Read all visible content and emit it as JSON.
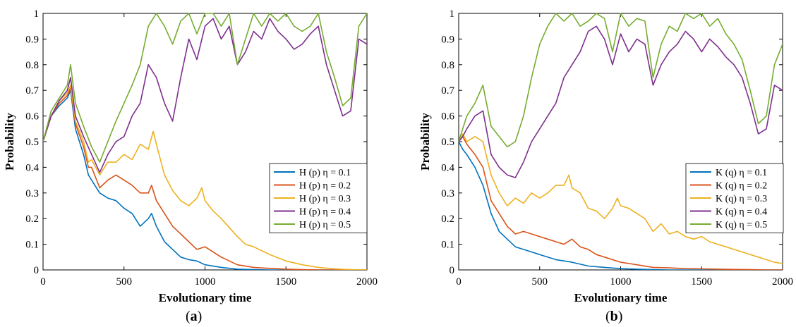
{
  "charts": [
    {
      "panel_label": "(a)",
      "caption_open": "(",
      "caption_letter": "a",
      "caption_close": ")",
      "chart_data": {
        "type": "line",
        "title": "",
        "xlabel": "Evolutionary time",
        "ylabel": "Probability",
        "xlim": [
          0,
          2000
        ],
        "ylim": [
          0,
          1
        ],
        "xticks": [
          0,
          500,
          1000,
          1500,
          2000
        ],
        "yticks": [
          0,
          0.1,
          0.2,
          0.3,
          0.4,
          0.5,
          0.6,
          0.7,
          0.8,
          0.9,
          1
        ],
        "grid": false,
        "legend_position": "middle-right",
        "series": [
          {
            "name": "H (p) η = 0.1",
            "color": "#0072BD",
            "x": [
              0,
              50,
              100,
              150,
              170,
              200,
              250,
              280,
              300,
              350,
              400,
              450,
              500,
              550,
              600,
              650,
              670,
              700,
              750,
              800,
              850,
              900,
              950,
              1000,
              1100,
              1200,
              1300,
              1400,
              1500,
              1600,
              1700,
              1800,
              1900,
              2000
            ],
            "y": [
              0.5,
              0.6,
              0.64,
              0.67,
              0.7,
              0.55,
              0.45,
              0.37,
              0.35,
              0.3,
              0.28,
              0.27,
              0.24,
              0.22,
              0.17,
              0.2,
              0.22,
              0.17,
              0.11,
              0.08,
              0.05,
              0.04,
              0.035,
              0.02,
              0.01,
              0.003,
              0.001,
              0,
              0,
              0,
              0,
              0,
              0,
              0
            ]
          },
          {
            "name": "H (p) η = 0.2",
            "color": "#D95319",
            "x": [
              0,
              50,
              100,
              150,
              170,
              200,
              250,
              280,
              300,
              350,
              400,
              450,
              500,
              550,
              600,
              650,
              670,
              700,
              750,
              800,
              850,
              900,
              950,
              1000,
              1100,
              1200,
              1300,
              1400,
              1500,
              1600,
              1700,
              1800,
              1900,
              2000
            ],
            "y": [
              0.5,
              0.6,
              0.65,
              0.68,
              0.71,
              0.57,
              0.48,
              0.4,
              0.4,
              0.32,
              0.35,
              0.37,
              0.35,
              0.33,
              0.3,
              0.3,
              0.33,
              0.27,
              0.22,
              0.17,
              0.14,
              0.11,
              0.08,
              0.09,
              0.05,
              0.02,
              0.01,
              0.006,
              0.003,
              0.001,
              0,
              0,
              0,
              0
            ]
          },
          {
            "name": "H (p) η = 0.3",
            "color": "#EDB120",
            "x": [
              0,
              50,
              100,
              150,
              170,
              200,
              250,
              280,
              300,
              350,
              400,
              450,
              500,
              550,
              600,
              650,
              680,
              700,
              750,
              800,
              850,
              900,
              950,
              980,
              1000,
              1050,
              1100,
              1200,
              1250,
              1300,
              1400,
              1500,
              1600,
              1700,
              1800,
              1900,
              2000
            ],
            "y": [
              0.5,
              0.6,
              0.66,
              0.69,
              0.72,
              0.58,
              0.5,
              0.42,
              0.43,
              0.37,
              0.42,
              0.42,
              0.45,
              0.43,
              0.49,
              0.47,
              0.54,
              0.49,
              0.37,
              0.31,
              0.27,
              0.25,
              0.28,
              0.32,
              0.27,
              0.23,
              0.2,
              0.13,
              0.1,
              0.09,
              0.06,
              0.035,
              0.02,
              0.01,
              0.004,
              0.001,
              0
            ]
          },
          {
            "name": "H (p) η = 0.4",
            "color": "#7E2F8E",
            "x": [
              0,
              50,
              100,
              150,
              170,
              200,
              250,
              300,
              350,
              400,
              450,
              500,
              550,
              600,
              650,
              700,
              750,
              800,
              850,
              900,
              950,
              1000,
              1050,
              1100,
              1150,
              1200,
              1250,
              1300,
              1350,
              1400,
              1450,
              1500,
              1550,
              1600,
              1650,
              1700,
              1750,
              1800,
              1850,
              1900,
              1950,
              2000
            ],
            "y": [
              0.5,
              0.6,
              0.66,
              0.7,
              0.75,
              0.6,
              0.52,
              0.45,
              0.38,
              0.45,
              0.5,
              0.52,
              0.6,
              0.65,
              0.8,
              0.75,
              0.65,
              0.58,
              0.75,
              0.9,
              0.82,
              0.95,
              0.98,
              0.9,
              0.95,
              0.8,
              0.85,
              0.93,
              0.9,
              0.98,
              0.93,
              0.9,
              0.86,
              0.88,
              0.92,
              0.95,
              0.8,
              0.7,
              0.6,
              0.62,
              0.9,
              0.88
            ]
          },
          {
            "name": "H (p) η = 0.5",
            "color": "#77AC30",
            "x": [
              0,
              50,
              100,
              150,
              170,
              200,
              250,
              300,
              350,
              400,
              450,
              500,
              550,
              600,
              650,
              700,
              750,
              800,
              850,
              900,
              950,
              1000,
              1050,
              1100,
              1150,
              1200,
              1250,
              1300,
              1350,
              1400,
              1450,
              1500,
              1550,
              1600,
              1650,
              1700,
              1750,
              1800,
              1850,
              1900,
              1950,
              2000
            ],
            "y": [
              0.5,
              0.62,
              0.67,
              0.72,
              0.8,
              0.65,
              0.56,
              0.48,
              0.42,
              0.5,
              0.58,
              0.65,
              0.72,
              0.8,
              0.95,
              1,
              0.95,
              0.88,
              0.97,
              1,
              0.92,
              1,
              1,
              0.95,
              1,
              0.8,
              0.9,
              1,
              0.95,
              1,
              0.97,
              1,
              0.95,
              0.93,
              0.95,
              1,
              0.85,
              0.75,
              0.64,
              0.67,
              0.95,
              1
            ]
          }
        ]
      }
    },
    {
      "panel_label": "(b)",
      "caption_open": "(",
      "caption_letter": "b",
      "caption_close": ")",
      "chart_data": {
        "type": "line",
        "title": "",
        "xlabel": "Evolutionary time",
        "ylabel": "Probability",
        "xlim": [
          0,
          2000
        ],
        "ylim": [
          0,
          1
        ],
        "xticks": [
          0,
          500,
          1000,
          1500,
          2000
        ],
        "yticks": [
          0,
          0.1,
          0.2,
          0.3,
          0.4,
          0.5,
          0.6,
          0.7,
          0.8,
          0.9,
          1
        ],
        "grid": false,
        "legend_position": "middle-right",
        "series": [
          {
            "name": "K (q) η = 0.1",
            "color": "#0072BD",
            "x": [
              0,
              25,
              50,
              100,
              150,
              200,
              250,
              300,
              350,
              400,
              450,
              500,
              600,
              700,
              800,
              900,
              1000,
              1100,
              1200,
              1300,
              1400,
              1500,
              1600,
              1700,
              1800,
              1900,
              2000
            ],
            "y": [
              0.5,
              0.47,
              0.45,
              0.4,
              0.33,
              0.22,
              0.15,
              0.12,
              0.09,
              0.08,
              0.07,
              0.06,
              0.04,
              0.03,
              0.015,
              0.01,
              0.005,
              0.003,
              0.001,
              0,
              0,
              0,
              0,
              0,
              0,
              0,
              0
            ]
          },
          {
            "name": "K (q) η = 0.2",
            "color": "#D95319",
            "x": [
              0,
              25,
              50,
              100,
              150,
              200,
              250,
              300,
              350,
              400,
              450,
              500,
              550,
              600,
              650,
              700,
              750,
              800,
              850,
              900,
              1000,
              1100,
              1200,
              1300,
              1400,
              1500,
              1600,
              1700,
              1800,
              1900,
              2000
            ],
            "y": [
              0.5,
              0.52,
              0.49,
              0.45,
              0.4,
              0.27,
              0.22,
              0.17,
              0.14,
              0.15,
              0.14,
              0.13,
              0.12,
              0.11,
              0.1,
              0.12,
              0.09,
              0.08,
              0.06,
              0.05,
              0.03,
              0.02,
              0.01,
              0.008,
              0.005,
              0.004,
              0.003,
              0.002,
              0.001,
              0,
              0
            ]
          },
          {
            "name": "K (q) η = 0.3",
            "color": "#EDB120",
            "x": [
              0,
              25,
              50,
              100,
              150,
              200,
              250,
              300,
              350,
              400,
              450,
              500,
              550,
              600,
              650,
              680,
              700,
              750,
              800,
              850,
              900,
              950,
              980,
              1000,
              1050,
              1100,
              1150,
              1200,
              1250,
              1300,
              1350,
              1400,
              1450,
              1500,
              1550,
              1600,
              1650,
              1700,
              1750,
              1800,
              1850,
              1900,
              1950,
              2000
            ],
            "y": [
              0.5,
              0.53,
              0.5,
              0.52,
              0.5,
              0.37,
              0.3,
              0.25,
              0.28,
              0.26,
              0.3,
              0.28,
              0.3,
              0.33,
              0.33,
              0.37,
              0.32,
              0.3,
              0.24,
              0.23,
              0.2,
              0.24,
              0.28,
              0.25,
              0.24,
              0.22,
              0.2,
              0.15,
              0.18,
              0.14,
              0.15,
              0.13,
              0.12,
              0.13,
              0.11,
              0.1,
              0.09,
              0.08,
              0.07,
              0.06,
              0.05,
              0.04,
              0.03,
              0.025
            ]
          },
          {
            "name": "K (q) η = 0.4",
            "color": "#7E2F8E",
            "x": [
              0,
              25,
              50,
              100,
              150,
              200,
              250,
              300,
              350,
              400,
              450,
              500,
              550,
              600,
              650,
              700,
              750,
              800,
              850,
              900,
              950,
              1000,
              1050,
              1100,
              1150,
              1200,
              1250,
              1300,
              1350,
              1400,
              1450,
              1500,
              1550,
              1600,
              1650,
              1700,
              1750,
              1800,
              1850,
              1900,
              1950,
              2000
            ],
            "y": [
              0.5,
              0.52,
              0.55,
              0.6,
              0.62,
              0.45,
              0.4,
              0.37,
              0.36,
              0.42,
              0.5,
              0.55,
              0.6,
              0.65,
              0.75,
              0.8,
              0.85,
              0.93,
              0.95,
              0.9,
              0.8,
              0.92,
              0.85,
              0.9,
              0.88,
              0.72,
              0.8,
              0.85,
              0.88,
              0.93,
              0.9,
              0.85,
              0.9,
              0.87,
              0.83,
              0.8,
              0.75,
              0.65,
              0.53,
              0.55,
              0.72,
              0.7
            ]
          },
          {
            "name": "K (q) η = 0.5",
            "color": "#77AC30",
            "x": [
              0,
              25,
              50,
              100,
              150,
              200,
              250,
              300,
              350,
              400,
              450,
              500,
              550,
              600,
              650,
              700,
              750,
              800,
              850,
              900,
              950,
              1000,
              1050,
              1100,
              1150,
              1200,
              1250,
              1300,
              1350,
              1400,
              1450,
              1500,
              1550,
              1600,
              1650,
              1700,
              1750,
              1800,
              1850,
              1900,
              1950,
              2000
            ],
            "y": [
              0.5,
              0.55,
              0.6,
              0.65,
              0.72,
              0.56,
              0.52,
              0.48,
              0.5,
              0.6,
              0.75,
              0.88,
              0.95,
              1,
              0.97,
              1,
              0.95,
              0.97,
              1,
              0.98,
              0.85,
              1,
              0.95,
              0.98,
              0.97,
              0.75,
              0.88,
              0.95,
              0.93,
              1,
              0.98,
              1,
              0.95,
              0.98,
              0.92,
              0.88,
              0.82,
              0.7,
              0.57,
              0.6,
              0.8,
              0.88
            ]
          }
        ]
      }
    }
  ]
}
